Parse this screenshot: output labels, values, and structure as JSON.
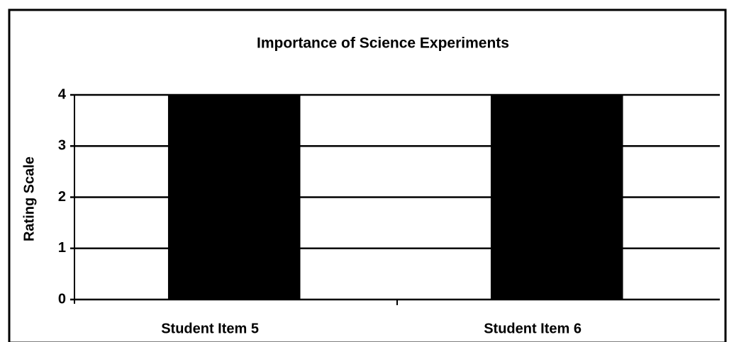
{
  "chart_data": {
    "type": "bar",
    "title": "Importance of Science Experiments",
    "y_label": "Rating Scale",
    "categories": [
      "Student Item 5",
      "Student Item 6"
    ],
    "values": [
      4,
      4
    ],
    "color": "#000000",
    "ylim": [
      0,
      4
    ],
    "yticks": [
      0,
      1,
      2,
      3,
      4
    ],
    "grid": true
  }
}
